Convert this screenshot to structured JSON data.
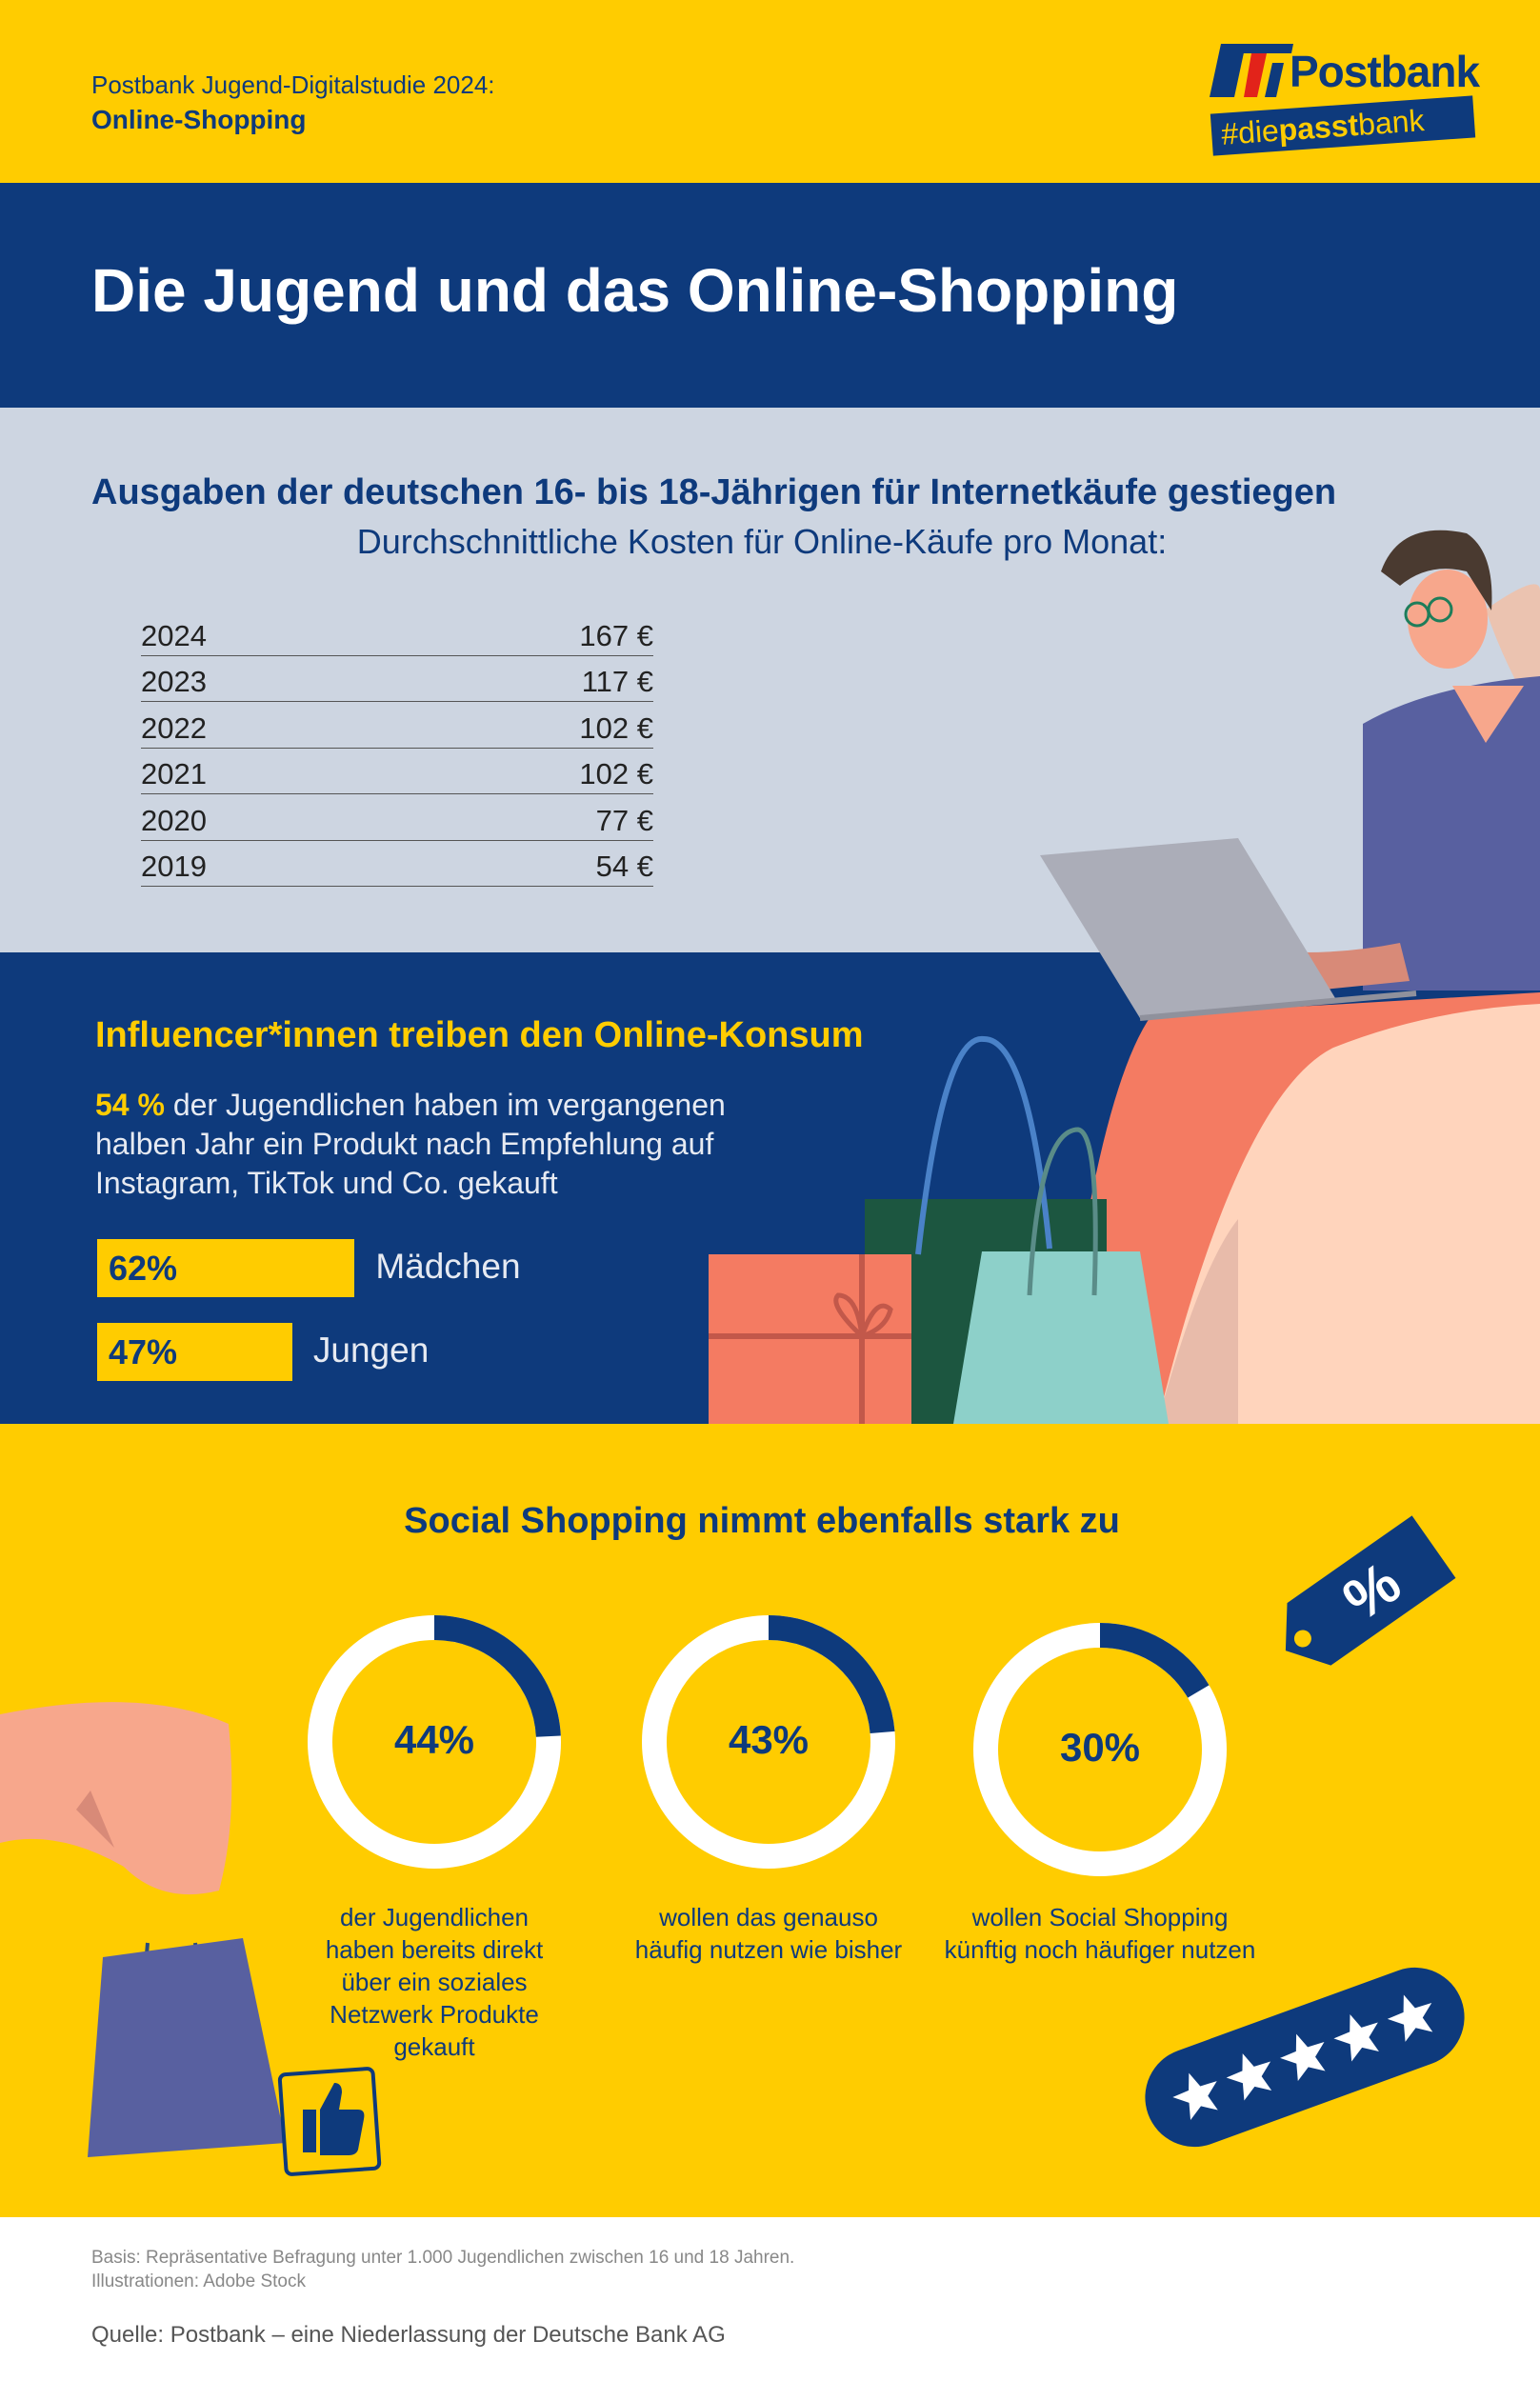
{
  "header": {
    "study": "Postbank Jugend-Digitalstudie 2024:",
    "topic": "Online-Shopping",
    "brand": "Postbank",
    "tagline_pre": "#die",
    "tagline_bold": "passt",
    "tagline_post": "bank"
  },
  "title": "Die Jugend und das Online-Shopping",
  "spending": {
    "heading": "Ausgaben der deutschen 16- bis 18-Jährigen für Internetkäufe gestiegen",
    "subheading": "Durchschnittliche Kosten für Online-Käufe pro Monat:",
    "rows": [
      {
        "year": "2024",
        "value": "167 €"
      },
      {
        "year": "2023",
        "value": "117 €"
      },
      {
        "year": "2022",
        "value": "102 €"
      },
      {
        "year": "2021",
        "value": "102 €"
      },
      {
        "year": "2020",
        "value": "77 €"
      },
      {
        "year": "2019",
        "value": "54 €"
      }
    ]
  },
  "influencer": {
    "heading": "Influencer*innen treiben den Online-Konsum",
    "highlight": "54 %",
    "text": " der Jugendlichen haben im vergangenen halben Jahr ein Produkt nach Empfehlung auf Instagram, TikTok und Co. gekauft",
    "bars": [
      {
        "value": "62%",
        "percent": 62,
        "label": "Mädchen"
      },
      {
        "value": "47%",
        "percent": 47,
        "label": "Jungen"
      }
    ]
  },
  "social": {
    "heading": "Social Shopping nimmt ebenfalls stark zu",
    "items": [
      {
        "value": "44%",
        "percent": 44,
        "text": "der Jugendlichen haben bereits direkt über ein soziales Netzwerk Produkte gekauft"
      },
      {
        "value": "43%",
        "percent": 43,
        "text": "wollen das genauso häufig nutzen wie bisher"
      },
      {
        "value": "30%",
        "percent": 30,
        "text": "wollen Social Shopping künftig noch häufiger nutzen"
      }
    ]
  },
  "footer": {
    "basis": "Basis: Repräsentative Befragung unter 1.000 Jugendlichen zwischen 16 und 18 Jahren.",
    "illustrations": "Illustrationen: Adobe Stock",
    "source": "Quelle: Postbank – eine Niederlassung der Deutsche Bank AG"
  },
  "colors": {
    "yellow": "#FFCC00",
    "blue": "#0E3A7C",
    "gray": "#CDD5E1"
  }
}
